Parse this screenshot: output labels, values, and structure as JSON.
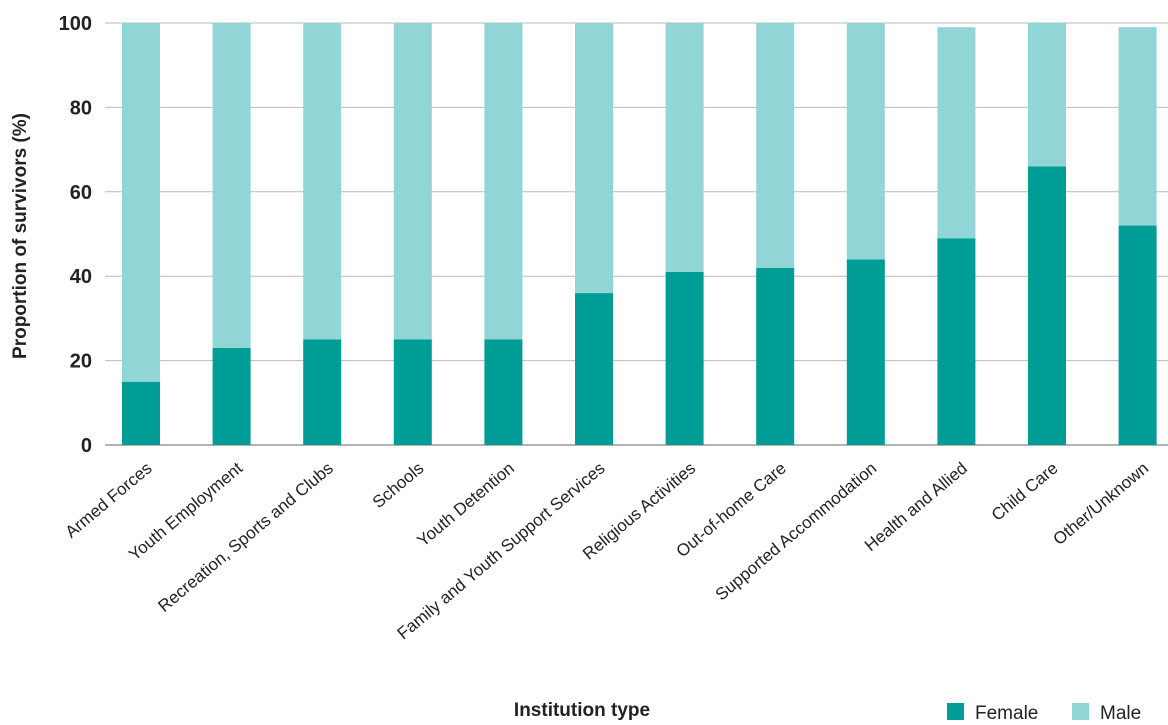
{
  "chart_data": {
    "type": "bar",
    "stacked": true,
    "xlabel": "Institution type",
    "ylabel": "Proportion of survivors (%)",
    "ylim": [
      0,
      100
    ],
    "yticks": [
      "0",
      "20",
      "40",
      "60",
      "80",
      "100"
    ],
    "grid": true,
    "legend_position": "bottom-right",
    "categories": [
      "Armed Forces",
      "Youth Employment",
      "Recreation, Sports and Clubs",
      "Schools",
      "Youth Detention",
      "Family and Youth Support Services",
      "Religious Activities",
      "Out-of-home Care",
      "Supported Accommodation",
      "Health and Allied",
      "Child Care",
      "Other/Unknown"
    ],
    "series": [
      {
        "name": "Female",
        "color": "#009c96",
        "values": [
          15,
          23,
          25,
          25,
          25,
          36,
          41,
          42,
          44,
          49,
          66,
          52
        ]
      },
      {
        "name": "Male",
        "color": "#92d5d7",
        "values": [
          85,
          77,
          75,
          75,
          75,
          64,
          59,
          58,
          56,
          50,
          34,
          47
        ]
      }
    ]
  }
}
